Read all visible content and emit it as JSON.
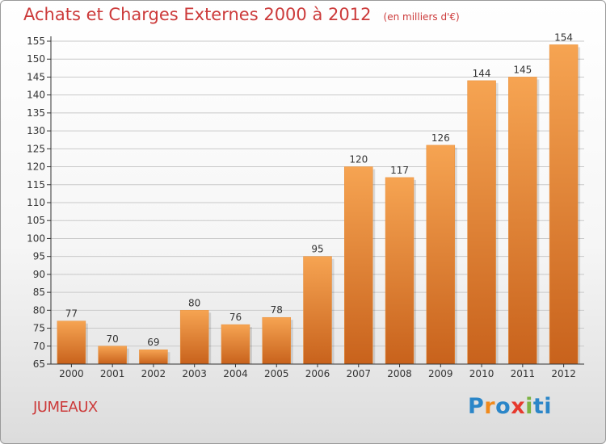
{
  "title": "Achats et Charges Externes 2000 à 2012",
  "unit_label": "(en milliers d'€)",
  "location": "JUMEAUX",
  "logo_text": "Proxiti",
  "colors": {
    "title": "#cc3a3a",
    "bar_top": "#f6a452",
    "bar_bottom": "#c8621c",
    "grid": "#c9c9c9",
    "axis": "#333333"
  },
  "chart_data": {
    "type": "bar",
    "categories": [
      "2000",
      "2001",
      "2002",
      "2003",
      "2004",
      "2005",
      "2006",
      "2007",
      "2008",
      "2009",
      "2010",
      "2011",
      "2012"
    ],
    "values": [
      77,
      70,
      69,
      80,
      76,
      78,
      95,
      120,
      117,
      126,
      144,
      145,
      154
    ],
    "title": "Achats et Charges Externes 2000 à 2012",
    "subtitle": "(en milliers d'€)",
    "xlabel": "",
    "ylabel": "",
    "ylim": [
      65,
      155
    ],
    "yticks": [
      65,
      70,
      75,
      80,
      85,
      90,
      95,
      100,
      105,
      110,
      115,
      120,
      125,
      130,
      135,
      140,
      145,
      150,
      155
    ],
    "grid": true,
    "data_labels": true
  }
}
